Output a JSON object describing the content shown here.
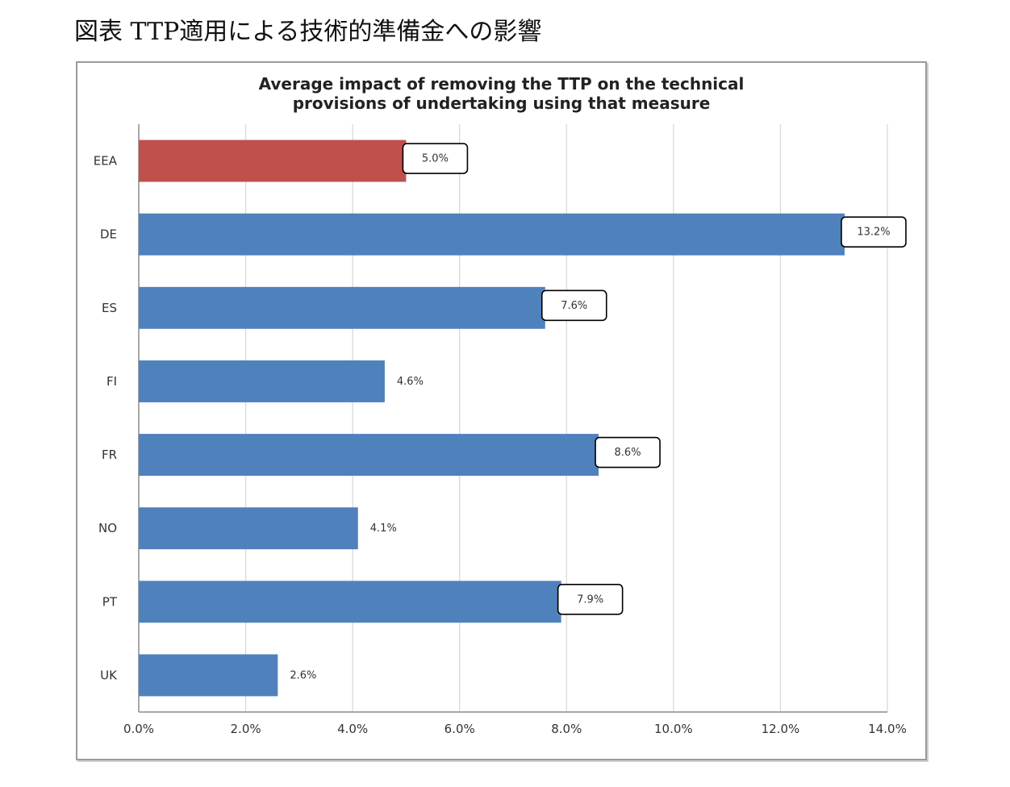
{
  "page": {
    "caption": "図表 TTP適用による技術的準備金への影響"
  },
  "colors": {
    "highlight_bar": "#c0504d",
    "bar": "#4f81bd",
    "grid": "#d9d9d9",
    "axis": "#8c8c8c",
    "label_box": "#000000"
  },
  "chart_data": {
    "type": "bar",
    "orientation": "horizontal",
    "title_lines": [
      "Average impact of removing the TTP on the technical",
      "provisions of undertaking using that measure"
    ],
    "categories": [
      "EEA",
      "DE",
      "ES",
      "FI",
      "FR",
      "NO",
      "PT",
      "UK"
    ],
    "values": [
      5.0,
      13.2,
      7.6,
      4.6,
      8.6,
      4.1,
      7.9,
      2.6
    ],
    "value_labels": [
      "5.0%",
      "13.2%",
      "7.6%",
      "4.6%",
      "8.6%",
      "4.1%",
      "7.9%",
      "2.6%"
    ],
    "boxed_labels": [
      true,
      true,
      true,
      false,
      true,
      false,
      true,
      false
    ],
    "highlight_categories": [
      "EEA"
    ],
    "xlim": [
      0,
      14
    ],
    "x_ticks": [
      0,
      2,
      4,
      6,
      8,
      10,
      12,
      14
    ],
    "x_tick_labels": [
      "0.0%",
      "2.0%",
      "4.0%",
      "6.0%",
      "8.0%",
      "10.0%",
      "12.0%",
      "14.0%"
    ],
    "grid": "vertical",
    "legend": "none",
    "xlabel": "",
    "ylabel": ""
  }
}
